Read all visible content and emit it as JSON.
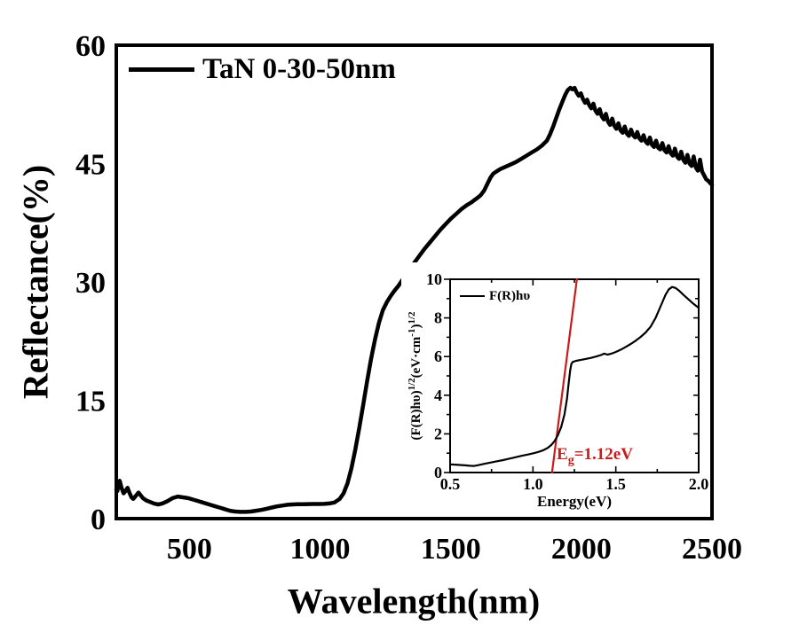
{
  "colors": {
    "foreground": "#000000",
    "fit_red": "#cc1a1a",
    "background": "#ffffff"
  },
  "chart_data": [
    {
      "type": "line",
      "title": "",
      "xlabel": "Wavelength(nm)",
      "ylabel": "Reflectance(%)",
      "xlim": [
        220,
        2500
      ],
      "ylim": [
        0,
        60
      ],
      "x_ticks": [
        500,
        1000,
        1500,
        2000,
        2500
      ],
      "x_tick_labels": [
        "500",
        "1000",
        "1500",
        "2000",
        "2500"
      ],
      "y_ticks": [
        0,
        15,
        30,
        45,
        60
      ],
      "y_tick_labels": [
        "0",
        "15",
        "30",
        "45",
        "60"
      ],
      "grid": false,
      "legend_position": "top-left",
      "series": [
        {
          "name": "TaN 0-30-50nm",
          "color": "#000000",
          "points": [
            [
              220,
              3.7
            ],
            [
              224,
              3.5
            ],
            [
              228,
              4.2
            ],
            [
              233,
              4.8
            ],
            [
              240,
              3.9
            ],
            [
              248,
              3.2
            ],
            [
              255,
              3.5
            ],
            [
              263,
              3.9
            ],
            [
              270,
              3.3
            ],
            [
              278,
              2.7
            ],
            [
              285,
              2.5
            ],
            [
              295,
              2.9
            ],
            [
              305,
              3.3
            ],
            [
              312,
              3.0
            ],
            [
              322,
              2.6
            ],
            [
              335,
              2.3
            ],
            [
              350,
              2.1
            ],
            [
              365,
              1.9
            ],
            [
              380,
              1.8
            ],
            [
              395,
              1.9
            ],
            [
              415,
              2.2
            ],
            [
              435,
              2.6
            ],
            [
              455,
              2.8
            ],
            [
              475,
              2.7
            ],
            [
              495,
              2.6
            ],
            [
              515,
              2.4
            ],
            [
              535,
              2.2
            ],
            [
              555,
              2.0
            ],
            [
              575,
              1.8
            ],
            [
              595,
              1.6
            ],
            [
              615,
              1.4
            ],
            [
              635,
              1.2
            ],
            [
              655,
              1.0
            ],
            [
              675,
              0.9
            ],
            [
              695,
              0.85
            ],
            [
              715,
              0.85
            ],
            [
              735,
              0.9
            ],
            [
              755,
              1.0
            ],
            [
              775,
              1.1
            ],
            [
              795,
              1.25
            ],
            [
              815,
              1.4
            ],
            [
              835,
              1.55
            ],
            [
              855,
              1.65
            ],
            [
              875,
              1.75
            ],
            [
              895,
              1.8
            ],
            [
              915,
              1.82
            ],
            [
              935,
              1.83
            ],
            [
              955,
              1.84
            ],
            [
              975,
              1.85
            ],
            [
              995,
              1.85
            ],
            [
              1015,
              1.87
            ],
            [
              1035,
              1.92
            ],
            [
              1055,
              2.05
            ],
            [
              1075,
              2.5
            ],
            [
              1090,
              3.2
            ],
            [
              1105,
              4.5
            ],
            [
              1120,
              6.4
            ],
            [
              1135,
              8.8
            ],
            [
              1150,
              11.5
            ],
            [
              1165,
              14.4
            ],
            [
              1180,
              17.4
            ],
            [
              1195,
              20.2
            ],
            [
              1210,
              22.7
            ],
            [
              1225,
              24.8
            ],
            [
              1240,
              26.4
            ],
            [
              1255,
              27.4
            ],
            [
              1270,
              28.2
            ],
            [
              1285,
              28.9
            ],
            [
              1300,
              29.5
            ],
            [
              1320,
              30.5
            ],
            [
              1340,
              31.5
            ],
            [
              1360,
              32.4
            ],
            [
              1380,
              33.3
            ],
            [
              1400,
              34.2
            ],
            [
              1420,
              35.0
            ],
            [
              1440,
              35.8
            ],
            [
              1460,
              36.6
            ],
            [
              1480,
              37.3
            ],
            [
              1500,
              38.0
            ],
            [
              1520,
              38.6
            ],
            [
              1540,
              39.2
            ],
            [
              1560,
              39.7
            ],
            [
              1580,
              40.1
            ],
            [
              1600,
              40.6
            ],
            [
              1615,
              41.0
            ],
            [
              1628,
              41.6
            ],
            [
              1640,
              42.4
            ],
            [
              1652,
              43.2
            ],
            [
              1662,
              43.7
            ],
            [
              1675,
              44.0
            ],
            [
              1690,
              44.3
            ],
            [
              1710,
              44.6
            ],
            [
              1730,
              44.9
            ],
            [
              1750,
              45.2
            ],
            [
              1770,
              45.6
            ],
            [
              1790,
              46.0
            ],
            [
              1810,
              46.4
            ],
            [
              1830,
              46.8
            ],
            [
              1850,
              47.3
            ],
            [
              1868,
              47.9
            ],
            [
              1880,
              48.7
            ],
            [
              1892,
              49.7
            ],
            [
              1904,
              50.8
            ],
            [
              1916,
              51.9
            ],
            [
              1928,
              52.9
            ],
            [
              1938,
              53.7
            ],
            [
              1948,
              54.3
            ],
            [
              1958,
              54.6
            ],
            [
              1966,
              54.4
            ],
            [
              1974,
              54.6
            ],
            [
              1982,
              54.0
            ],
            [
              1990,
              53.6
            ],
            [
              1998,
              53.9
            ],
            [
              2006,
              53.2
            ],
            [
              2014,
              52.7
            ],
            [
              2022,
              53.1
            ],
            [
              2030,
              52.4
            ],
            [
              2038,
              52.0
            ],
            [
              2046,
              52.6
            ],
            [
              2054,
              51.7
            ],
            [
              2062,
              51.3
            ],
            [
              2070,
              51.9
            ],
            [
              2078,
              51.0
            ],
            [
              2086,
              50.6
            ],
            [
              2094,
              51.3
            ],
            [
              2102,
              50.3
            ],
            [
              2110,
              49.9
            ],
            [
              2118,
              50.7
            ],
            [
              2126,
              49.8
            ],
            [
              2134,
              49.4
            ],
            [
              2142,
              50.1
            ],
            [
              2150,
              49.2
            ],
            [
              2158,
              48.9
            ],
            [
              2166,
              49.7
            ],
            [
              2174,
              48.8
            ],
            [
              2182,
              48.5
            ],
            [
              2190,
              49.3
            ],
            [
              2198,
              48.6
            ],
            [
              2206,
              48.3
            ],
            [
              2214,
              49.0
            ],
            [
              2222,
              48.2
            ],
            [
              2230,
              47.9
            ],
            [
              2238,
              48.6
            ],
            [
              2246,
              47.8
            ],
            [
              2254,
              47.5
            ],
            [
              2262,
              48.3
            ],
            [
              2270,
              47.4
            ],
            [
              2278,
              47.1
            ],
            [
              2286,
              47.9
            ],
            [
              2294,
              47.0
            ],
            [
              2302,
              46.8
            ],
            [
              2310,
              47.6
            ],
            [
              2318,
              46.7
            ],
            [
              2326,
              46.4
            ],
            [
              2334,
              47.2
            ],
            [
              2342,
              46.3
            ],
            [
              2350,
              46.0
            ],
            [
              2358,
              46.9
            ],
            [
              2366,
              45.9
            ],
            [
              2374,
              45.6
            ],
            [
              2382,
              46.5
            ],
            [
              2390,
              45.5
            ],
            [
              2398,
              45.1
            ],
            [
              2406,
              46.1
            ],
            [
              2414,
              45.0
            ],
            [
              2422,
              44.7
            ],
            [
              2430,
              45.9
            ],
            [
              2438,
              44.5
            ],
            [
              2446,
              44.1
            ],
            [
              2454,
              45.5
            ],
            [
              2462,
              44.0
            ],
            [
              2470,
              43.5
            ],
            [
              2478,
              43.0
            ],
            [
              2486,
              42.8
            ],
            [
              2494,
              42.5
            ],
            [
              2500,
              42.3
            ]
          ]
        }
      ]
    },
    {
      "type": "line",
      "title": "",
      "xlabel": "Energy(eV)",
      "ylabel": "(F(R)hυ)1/2(eV·cm-1)1/2",
      "ylabel_parts": {
        "p1": "(F(R)hυ)",
        "s1": "1/2",
        "p2": "(eV·cm",
        "s2": "-1",
        "p3": ")",
        "s3": "1/2"
      },
      "xlim": [
        0.5,
        2.0
      ],
      "ylim": [
        0,
        10
      ],
      "x_ticks": [
        0.5,
        1.0,
        1.5,
        2.0
      ],
      "x_tick_labels": [
        "0.5",
        "1.0",
        "1.5",
        "2.0"
      ],
      "x_minor_ticks": [
        0.75,
        1.25,
        1.75
      ],
      "y_ticks": [
        0,
        2,
        4,
        6,
        8,
        10
      ],
      "y_tick_labels": [
        "0",
        "2",
        "4",
        "6",
        "8",
        "10"
      ],
      "y_minor_ticks": [
        1,
        3,
        5,
        7,
        9
      ],
      "grid": false,
      "legend_position": "top-left",
      "annotation": {
        "e": "E",
        "sub": "g",
        "rest": "=1.12eV",
        "color": "#cc1a1a"
      },
      "series": [
        {
          "name": "F(R)hυ",
          "color": "#000000",
          "points": [
            [
              0.5,
              0.42
            ],
            [
              0.53,
              0.41
            ],
            [
              0.56,
              0.39
            ],
            [
              0.59,
              0.37
            ],
            [
              0.62,
              0.35
            ],
            [
              0.645,
              0.34
            ],
            [
              0.67,
              0.38
            ],
            [
              0.7,
              0.44
            ],
            [
              0.73,
              0.49
            ],
            [
              0.76,
              0.54
            ],
            [
              0.79,
              0.59
            ],
            [
              0.82,
              0.64
            ],
            [
              0.85,
              0.7
            ],
            [
              0.88,
              0.76
            ],
            [
              0.91,
              0.82
            ],
            [
              0.94,
              0.88
            ],
            [
              0.97,
              0.93
            ],
            [
              1.0,
              0.99
            ],
            [
              1.03,
              1.06
            ],
            [
              1.06,
              1.14
            ],
            [
              1.09,
              1.28
            ],
            [
              1.11,
              1.42
            ],
            [
              1.13,
              1.62
            ],
            [
              1.15,
              1.92
            ],
            [
              1.17,
              2.35
            ],
            [
              1.19,
              3.0
            ],
            [
              1.205,
              3.8
            ],
            [
              1.215,
              4.6
            ],
            [
              1.225,
              5.3
            ],
            [
              1.232,
              5.62
            ],
            [
              1.24,
              5.72
            ],
            [
              1.26,
              5.78
            ],
            [
              1.29,
              5.83
            ],
            [
              1.32,
              5.88
            ],
            [
              1.35,
              5.93
            ],
            [
              1.38,
              6.0
            ],
            [
              1.41,
              6.08
            ],
            [
              1.43,
              6.15
            ],
            [
              1.45,
              6.1
            ],
            [
              1.47,
              6.14
            ],
            [
              1.5,
              6.24
            ],
            [
              1.53,
              6.36
            ],
            [
              1.56,
              6.5
            ],
            [
              1.59,
              6.65
            ],
            [
              1.62,
              6.82
            ],
            [
              1.65,
              7.02
            ],
            [
              1.68,
              7.25
            ],
            [
              1.71,
              7.55
            ],
            [
              1.74,
              8.0
            ],
            [
              1.77,
              8.6
            ],
            [
              1.8,
              9.2
            ],
            [
              1.82,
              9.48
            ],
            [
              1.84,
              9.6
            ],
            [
              1.86,
              9.55
            ],
            [
              1.88,
              9.42
            ],
            [
              1.91,
              9.18
            ],
            [
              1.94,
              8.95
            ],
            [
              1.97,
              8.72
            ],
            [
              2.0,
              8.52
            ]
          ]
        },
        {
          "name": "band-gap-fit-line",
          "color": "#cc1a1a",
          "points": [
            [
              1.115,
              0
            ],
            [
              1.265,
              10
            ]
          ]
        }
      ]
    }
  ]
}
